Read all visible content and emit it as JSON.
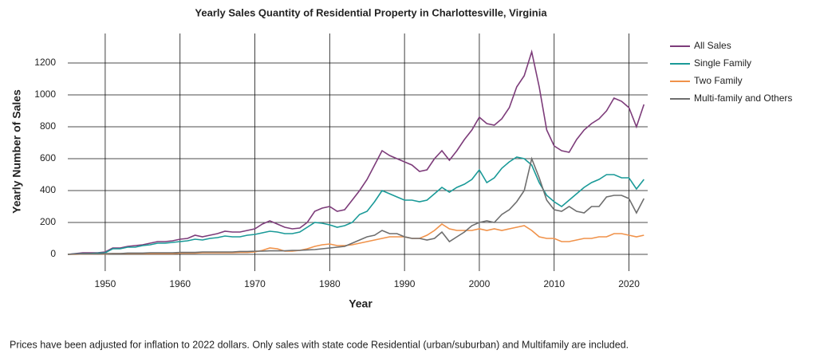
{
  "chart_data": {
    "type": "line",
    "title": "Yearly Sales Quantity of Residential Property in Charlottesville, Virginia",
    "x_label": "Year",
    "y_label": "Yearly Number of Sales",
    "note": "Prices have been adjusted for inflation to 2022 dollars. Only sales with state code Residential (urban/suburban) and Multifamily are included.",
    "x": [
      1945,
      1946,
      1947,
      1948,
      1949,
      1950,
      1951,
      1952,
      1953,
      1954,
      1955,
      1956,
      1957,
      1958,
      1959,
      1960,
      1961,
      1962,
      1963,
      1964,
      1965,
      1966,
      1967,
      1968,
      1969,
      1970,
      1971,
      1972,
      1973,
      1974,
      1975,
      1976,
      1977,
      1978,
      1979,
      1980,
      1981,
      1982,
      1983,
      1984,
      1985,
      1986,
      1987,
      1988,
      1989,
      1990,
      1991,
      1992,
      1993,
      1994,
      1995,
      1996,
      1997,
      1998,
      1999,
      2000,
      2001,
      2002,
      2003,
      2004,
      2005,
      2006,
      2007,
      2008,
      2009,
      2010,
      2011,
      2012,
      2013,
      2014,
      2015,
      2016,
      2017,
      2018,
      2019,
      2020,
      2021,
      2022
    ],
    "series": [
      {
        "name": "All Sales",
        "color": "#7d3c7a",
        "values": [
          0,
          5,
          10,
          10,
          10,
          15,
          40,
          40,
          50,
          55,
          60,
          70,
          80,
          80,
          85,
          95,
          100,
          120,
          110,
          120,
          130,
          145,
          140,
          140,
          150,
          160,
          190,
          210,
          190,
          170,
          160,
          165,
          200,
          270,
          290,
          300,
          270,
          280,
          340,
          400,
          470,
          560,
          650,
          620,
          600,
          580,
          560,
          520,
          530,
          600,
          650,
          590,
          650,
          720,
          780,
          860,
          820,
          810,
          850,
          920,
          1050,
          1120,
          1270,
          1050,
          780,
          680,
          650,
          640,
          720,
          780,
          820,
          850,
          900,
          980,
          960,
          920,
          800,
          940
        ]
      },
      {
        "name": "Single Family",
        "color": "#1a9a98",
        "values": [
          0,
          3,
          5,
          5,
          8,
          10,
          35,
          35,
          45,
          45,
          55,
          60,
          70,
          70,
          75,
          80,
          85,
          95,
          90,
          100,
          105,
          115,
          110,
          110,
          120,
          125,
          135,
          145,
          140,
          130,
          130,
          140,
          170,
          200,
          195,
          185,
          170,
          180,
          200,
          250,
          270,
          330,
          400,
          380,
          360,
          340,
          340,
          330,
          340,
          380,
          420,
          390,
          420,
          440,
          470,
          530,
          450,
          480,
          540,
          580,
          610,
          600,
          560,
          450,
          370,
          330,
          300,
          340,
          380,
          420,
          450,
          470,
          500,
          500,
          480,
          480,
          410,
          470
        ]
      },
      {
        "name": "Two Family",
        "color": "#f0924a",
        "values": [
          0,
          0,
          2,
          2,
          3,
          3,
          5,
          5,
          5,
          5,
          5,
          5,
          5,
          5,
          5,
          8,
          8,
          8,
          10,
          10,
          10,
          10,
          10,
          12,
          12,
          15,
          25,
          40,
          35,
          20,
          20,
          25,
          35,
          50,
          60,
          65,
          55,
          55,
          60,
          70,
          80,
          90,
          100,
          110,
          110,
          110,
          100,
          100,
          120,
          150,
          190,
          160,
          150,
          150,
          150,
          160,
          150,
          160,
          150,
          160,
          170,
          180,
          150,
          110,
          100,
          100,
          80,
          80,
          90,
          100,
          100,
          110,
          110,
          130,
          130,
          120,
          110,
          120
        ]
      },
      {
        "name": "Multi-family and Others",
        "color": "#6e6e6e",
        "values": [
          0,
          2,
          3,
          3,
          3,
          5,
          5,
          5,
          8,
          8,
          8,
          10,
          10,
          10,
          10,
          12,
          12,
          12,
          15,
          15,
          15,
          15,
          15,
          18,
          18,
          20,
          20,
          22,
          22,
          22,
          25,
          25,
          28,
          30,
          35,
          40,
          45,
          50,
          70,
          90,
          110,
          120,
          150,
          130,
          130,
          110,
          100,
          100,
          90,
          100,
          140,
          80,
          110,
          140,
          180,
          200,
          210,
          200,
          250,
          280,
          330,
          400,
          600,
          480,
          340,
          280,
          270,
          300,
          270,
          260,
          300,
          300,
          360,
          370,
          370,
          350,
          260,
          350
        ]
      }
    ],
    "xlim": [
      1945,
      2022.5
    ],
    "ylim": [
      -105,
      1385
    ],
    "xticks": [
      1950,
      1960,
      1970,
      1980,
      1990,
      2000,
      2010,
      2020
    ],
    "yticks": [
      0,
      200,
      400,
      600,
      800,
      1000,
      1200
    ],
    "grid": true,
    "legend": "right"
  }
}
